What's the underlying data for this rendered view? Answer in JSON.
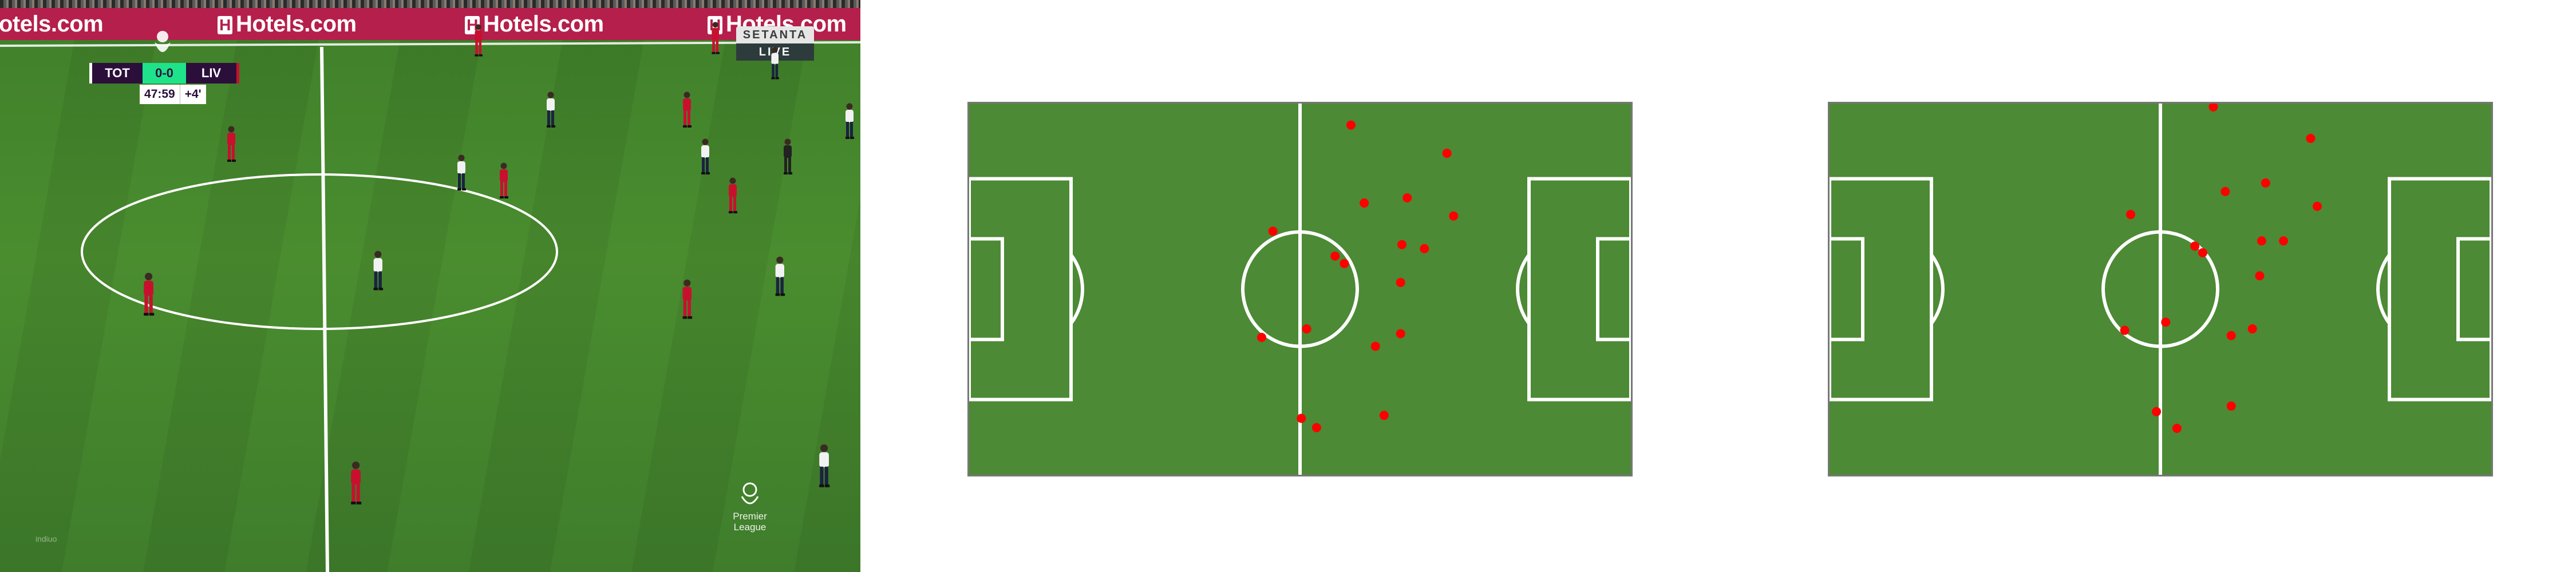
{
  "broadcast": {
    "ad_text": "Hotels.com",
    "ad_text_partial": "otels.com",
    "ad_h": "H",
    "home_team": "TOT",
    "away_team": "LIV",
    "score": "0-0",
    "match_clock": "47:59",
    "added_time": "+4'",
    "broadcaster": "SETANTA",
    "live_label": "LIVE",
    "league_line1": "Premier",
    "league_line2": "League",
    "watermark": "indiuo",
    "colors": {
      "ad_board": "#b51f4b",
      "score_bg": "#1ee38a",
      "team_bg": "#2b0f3a",
      "home_kit": "#f2f2f2",
      "away_kit": "#c8102e"
    }
  },
  "minimaps": [
    {
      "name": "minimap-left",
      "pitch_color": "#4c8a35",
      "line_color": "#ffffff",
      "dot_color": "#ff0000",
      "players": [
        [
          0.577,
          0.058
        ],
        [
          0.722,
          0.134
        ],
        [
          0.597,
          0.268
        ],
        [
          0.662,
          0.254
        ],
        [
          0.732,
          0.303
        ],
        [
          0.459,
          0.344
        ],
        [
          0.654,
          0.38
        ],
        [
          0.688,
          0.391
        ],
        [
          0.553,
          0.411
        ],
        [
          0.567,
          0.431
        ],
        [
          0.652,
          0.482
        ],
        [
          0.51,
          0.607
        ],
        [
          0.442,
          0.63
        ],
        [
          0.652,
          0.62
        ],
        [
          0.614,
          0.654
        ],
        [
          0.627,
          0.84
        ],
        [
          0.502,
          0.848
        ],
        [
          0.525,
          0.873
        ]
      ]
    },
    {
      "name": "minimap-right",
      "pitch_color": "#4c8a35",
      "line_color": "#ffffff",
      "dot_color": "#ff0000",
      "players": [
        [
          0.58,
          0.009
        ],
        [
          0.727,
          0.094
        ],
        [
          0.659,
          0.214
        ],
        [
          0.598,
          0.237
        ],
        [
          0.737,
          0.277
        ],
        [
          0.455,
          0.299
        ],
        [
          0.653,
          0.37
        ],
        [
          0.686,
          0.37
        ],
        [
          0.552,
          0.384
        ],
        [
          0.564,
          0.402
        ],
        [
          0.65,
          0.464
        ],
        [
          0.508,
          0.589
        ],
        [
          0.446,
          0.611
        ],
        [
          0.639,
          0.607
        ],
        [
          0.607,
          0.625
        ],
        [
          0.607,
          0.815
        ],
        [
          0.494,
          0.83
        ],
        [
          0.525,
          0.875
        ]
      ]
    }
  ]
}
